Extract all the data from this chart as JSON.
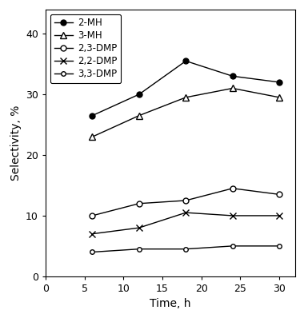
{
  "x": [
    6,
    12,
    18,
    24,
    30
  ],
  "series": [
    {
      "label": "2-MH",
      "y": [
        26.5,
        30.0,
        35.5,
        33.0,
        32.0
      ],
      "marker": "o",
      "markerfacecolor": "black",
      "markersize": 5,
      "color": "black",
      "linestyle": "-"
    },
    {
      "label": "3-MH",
      "y": [
        23.0,
        26.5,
        29.5,
        31.0,
        29.5
      ],
      "marker": "^",
      "markerfacecolor": "white",
      "markersize": 6,
      "color": "black",
      "linestyle": "-"
    },
    {
      "label": "2,3-DMP",
      "y": [
        10.0,
        12.0,
        12.5,
        14.5,
        13.5
      ],
      "marker": "o",
      "markerfacecolor": "white",
      "markersize": 5,
      "color": "black",
      "linestyle": "-"
    },
    {
      "label": "2,2-DMP",
      "y": [
        7.0,
        8.0,
        10.5,
        10.0,
        10.0
      ],
      "marker": "x",
      "markerfacecolor": "black",
      "markersize": 6,
      "color": "black",
      "linestyle": "-"
    },
    {
      "label": "3,3-DMP",
      "y": [
        4.0,
        4.5,
        4.5,
        5.0,
        5.0
      ],
      "marker": "o",
      "markerfacecolor": "white",
      "markersize": 4,
      "color": "black",
      "linestyle": "-"
    }
  ],
  "xlabel": "Time, h",
  "ylabel": "Selectivity, %",
  "xlim": [
    0,
    32
  ],
  "ylim": [
    0,
    44
  ],
  "xticks": [
    0,
    5,
    10,
    15,
    20,
    25,
    30
  ],
  "yticks": [
    0,
    10,
    20,
    30,
    40
  ],
  "figsize": [
    3.8,
    3.93
  ],
  "dpi": 100
}
